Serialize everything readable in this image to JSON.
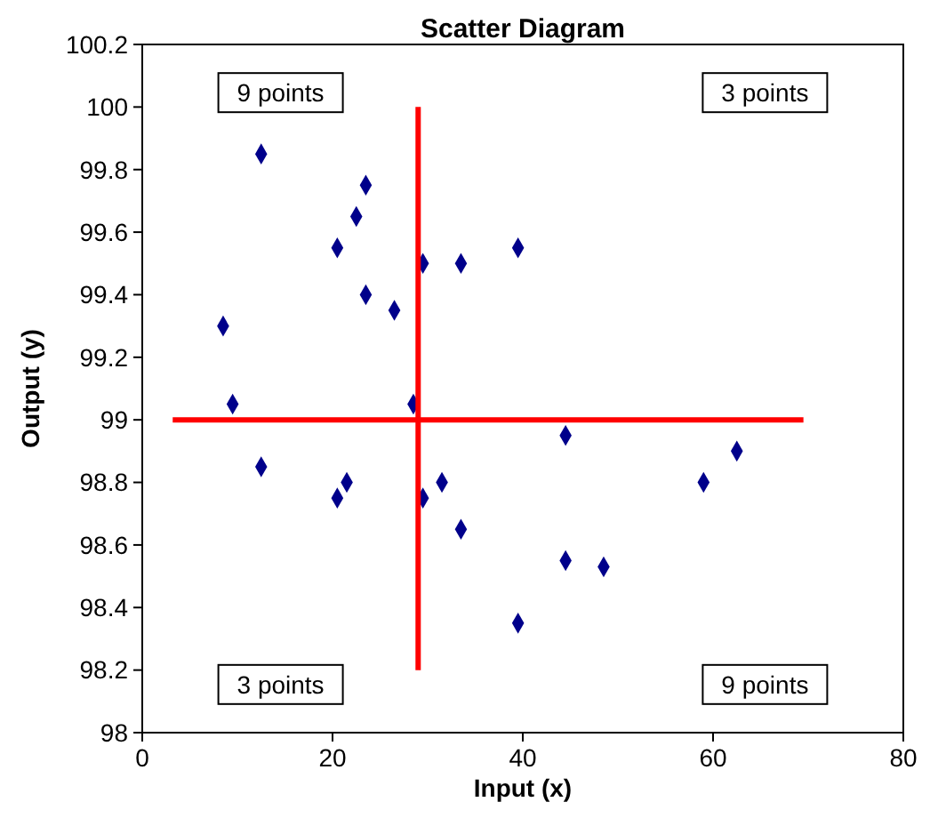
{
  "chart_data": {
    "type": "scatter",
    "title": "Scatter Diagram",
    "xlabel": "Input (x)",
    "ylabel": "Output (y)",
    "xlim": [
      0,
      80
    ],
    "xticks": [
      0,
      20,
      40,
      60,
      80
    ],
    "ylim": [
      98,
      100.2
    ],
    "yticks": [
      {
        "value": 98,
        "label": "98"
      },
      {
        "value": 98.2,
        "label": "98.2"
      },
      {
        "value": 98.4,
        "label": "98.4"
      },
      {
        "value": 98.6,
        "label": "98.6"
      },
      {
        "value": 98.8,
        "label": "98.8"
      },
      {
        "value": 99,
        "label": "99"
      },
      {
        "value": 99.2,
        "label": "99.2"
      },
      {
        "value": 99.4,
        "label": "99.4"
      },
      {
        "value": 99.6,
        "label": "99.6"
      },
      {
        "value": 99.8,
        "label": "99.8"
      },
      {
        "value": 100,
        "label": "100"
      },
      {
        "value": 100.2,
        "label": "100.2"
      }
    ],
    "grid": false,
    "marker": "diamond",
    "series": [
      {
        "color": "#00008b",
        "x": [
          12.5,
          23.5,
          22.5,
          20.5,
          29.5,
          33.5,
          39.5,
          23.5,
          26.5,
          8.5,
          9.5,
          28.5,
          44.5,
          12.5,
          21.5,
          31.5,
          20.5,
          29.5,
          59,
          62.5,
          33.5,
          44.5,
          48.5,
          39.5
        ],
        "values": [
          99.85,
          99.75,
          99.65,
          99.55,
          99.5,
          99.5,
          99.55,
          99.4,
          99.35,
          99.3,
          99.05,
          99.05,
          98.95,
          98.85,
          98.8,
          98.8,
          98.75,
          98.75,
          98.8,
          98.9,
          98.65,
          98.55,
          98.53,
          98.35
        ]
      },
      {
        "type": "line",
        "marker": "none",
        "color": "#ff0000",
        "x": [
          29,
          29
        ],
        "values": [
          98.2,
          100
        ]
      },
      {
        "type": "line",
        "marker": "none",
        "color": "#ff0000",
        "x": [
          3.2,
          69.5
        ],
        "values": [
          99,
          99
        ]
      }
    ],
    "annotations": [
      "9 points",
      "3 points",
      "3 points",
      "9 points"
    ]
  }
}
